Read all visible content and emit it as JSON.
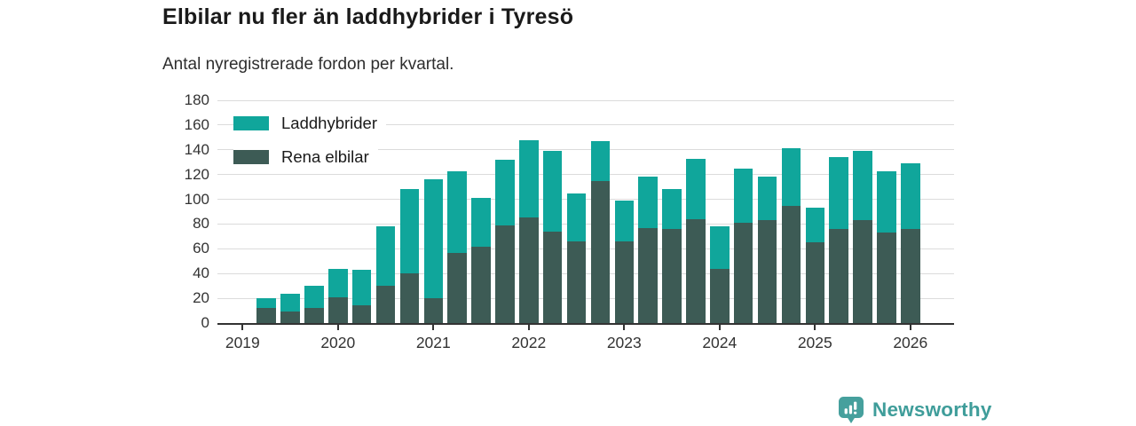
{
  "title": "Elbilar nu fler än laddhybrider i Tyresö",
  "subtitle": "Antal nyregistrerade fordon per kvartal.",
  "colors": {
    "laddhybrider": "#10A69B",
    "rena_elbilar": "#3D5B55",
    "gridline": "#DBDBDB",
    "axis": "#333333",
    "title_text": "#1A1A1A",
    "label_text": "#333333"
  },
  "branding": {
    "name": "Newsworthy",
    "badge_color": "#46A09D",
    "text_color": "#3F9D9A",
    "logo_icon": "bar-chart-exclamation-badge"
  },
  "chart_data": {
    "type": "bar",
    "stacked": true,
    "title": "Elbilar nu fler än laddhybrider i Tyresö",
    "subtitle": "Antal nyregistrerade fordon per kvartal.",
    "xlabel": "",
    "ylabel": "",
    "ylim": [
      0,
      180
    ],
    "y_ticks": [
      0,
      20,
      40,
      60,
      80,
      100,
      120,
      140,
      160,
      180
    ],
    "grid": "horizontal",
    "legend_position": "top-left-inside",
    "legend_entries": [
      "Laddhybrider",
      "Rena elbilar"
    ],
    "stack_bottom_series": "Rena elbilar",
    "x": [
      "2019-Q2",
      "2019-Q3",
      "2019-Q4",
      "2020-Q1",
      "2020-Q2",
      "2020-Q3",
      "2020-Q4",
      "2021-Q1",
      "2021-Q2",
      "2021-Q3",
      "2021-Q4",
      "2022-Q1",
      "2022-Q2",
      "2022-Q3",
      "2022-Q4",
      "2023-Q1",
      "2023-Q2",
      "2023-Q3",
      "2023-Q4",
      "2024-Q1",
      "2024-Q2",
      "2024-Q3",
      "2024-Q4",
      "2025-Q1",
      "2025-Q2",
      "2025-Q3",
      "2025-Q4",
      "2026-Q1"
    ],
    "x_tick_years": [
      "2019",
      "2020",
      "2021",
      "2022",
      "2023",
      "2024",
      "2025",
      "2026"
    ],
    "series": [
      {
        "name": "Laddhybrider",
        "color": "#10A69B",
        "values": [
          8,
          15,
          18,
          23,
          29,
          48,
          68,
          96,
          66,
          39,
          53,
          63,
          65,
          39,
          32,
          33,
          41,
          32,
          49,
          34,
          44,
          35,
          46,
          28,
          58,
          56,
          50,
          53
        ]
      },
      {
        "name": "Rena elbilar",
        "color": "#3D5B55",
        "values": [
          12,
          9,
          12,
          21,
          14,
          30,
          40,
          20,
          57,
          62,
          79,
          85,
          74,
          66,
          115,
          66,
          77,
          76,
          84,
          44,
          81,
          83,
          95,
          65,
          76,
          83,
          73,
          76
        ]
      }
    ],
    "totals": [
      20,
      24,
      30,
      44,
      43,
      78,
      108,
      116,
      123,
      101,
      132,
      148,
      139,
      105,
      147,
      99,
      118,
      108,
      133,
      78,
      125,
      118,
      141,
      93,
      134,
      139,
      123,
      129
    ]
  }
}
